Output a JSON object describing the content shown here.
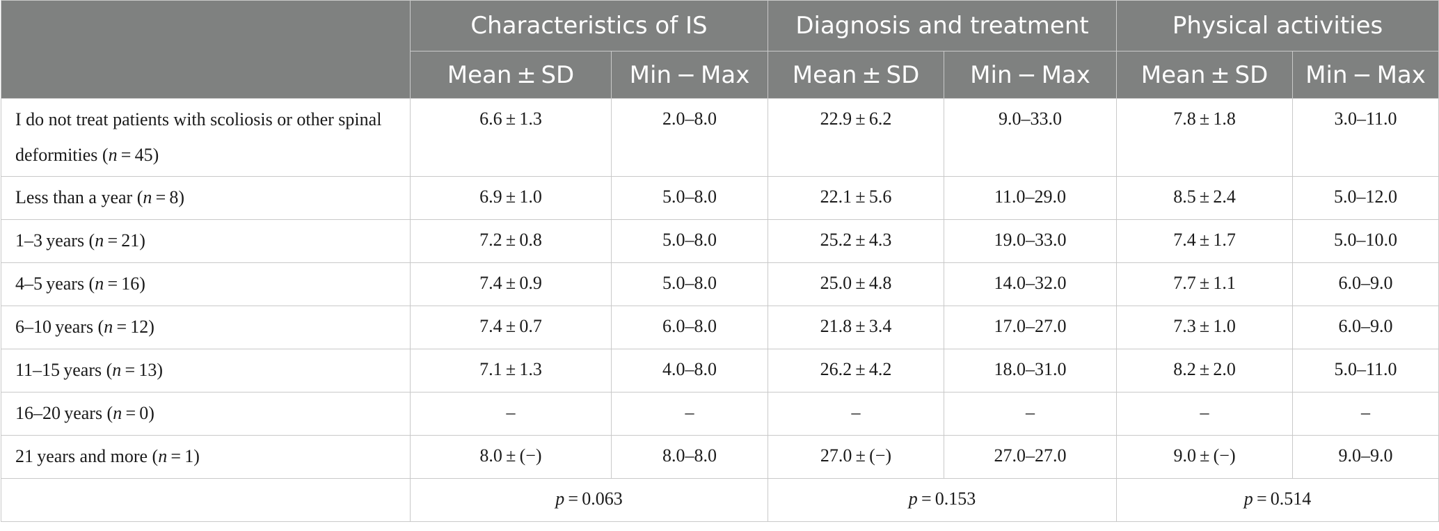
{
  "header": {
    "groups": [
      "Characteristics of IS",
      "Diagnosis and treatment",
      "Physical activities"
    ],
    "subcolumns": [
      "Mean ± SD",
      "Min − Max",
      "Mean ± SD",
      "Min − Max",
      "Mean ± SD",
      "Min − Max"
    ]
  },
  "rows": [
    {
      "label_pre": "I do not treat patients with scoliosis or other spinal deformities (",
      "n": "n",
      "label_post": " = 45)",
      "cells": [
        "6.6 ± 1.3",
        "2.0–8.0",
        "22.9 ± 6.2",
        "9.0–33.0",
        "7.8 ± 1.8",
        "3.0–11.0"
      ]
    },
    {
      "label_pre": "Less than a year (",
      "n": "n",
      "label_post": " = 8)",
      "cells": [
        "6.9 ± 1.0",
        "5.0–8.0",
        "22.1 ± 5.6",
        "11.0–29.0",
        "8.5 ± 2.4",
        "5.0–12.0"
      ]
    },
    {
      "label_pre": "1–3 years (",
      "n": "n",
      "label_post": " = 21)",
      "cells": [
        "7.2 ± 0.8",
        "5.0–8.0",
        "25.2 ± 4.3",
        "19.0–33.0",
        "7.4 ± 1.7",
        "5.0–10.0"
      ]
    },
    {
      "label_pre": "4–5 years (",
      "n": "n",
      "label_post": " = 16)",
      "cells": [
        "7.4 ± 0.9",
        "5.0–8.0",
        "25.0 ± 4.8",
        "14.0–32.0",
        "7.7 ± 1.1",
        "6.0–9.0"
      ]
    },
    {
      "label_pre": "6–10 years (",
      "n": "n",
      "label_post": " = 12)",
      "cells": [
        "7.4 ± 0.7",
        "6.0–8.0",
        "21.8 ± 3.4",
        "17.0–27.0",
        "7.3 ± 1.0",
        "6.0–9.0"
      ]
    },
    {
      "label_pre": "11–15 years (",
      "n": "n",
      "label_post": " = 13)",
      "cells": [
        "7.1 ± 1.3",
        "4.0–8.0",
        "26.2 ± 4.2",
        "18.0–31.0",
        "8.2 ± 2.0",
        "5.0–11.0"
      ]
    },
    {
      "label_pre": "16–20 years (",
      "n": "n",
      "label_post": " = 0)",
      "cells": [
        "–",
        "–",
        "–",
        "–",
        "–",
        "–"
      ]
    },
    {
      "label_pre": "21 years and more (",
      "n": "n",
      "label_post": " = 1)",
      "cells": [
        "8.0 ± (−)",
        "8.0–8.0",
        "27.0 ± (−)",
        "27.0–27.0",
        "9.0 ± (−)",
        "9.0–9.0"
      ]
    }
  ],
  "pvalues": [
    {
      "p": "p",
      "value": " = 0.063"
    },
    {
      "p": "p",
      "value": " = 0.153"
    },
    {
      "p": "p",
      "value": " = 0.514"
    }
  ]
}
